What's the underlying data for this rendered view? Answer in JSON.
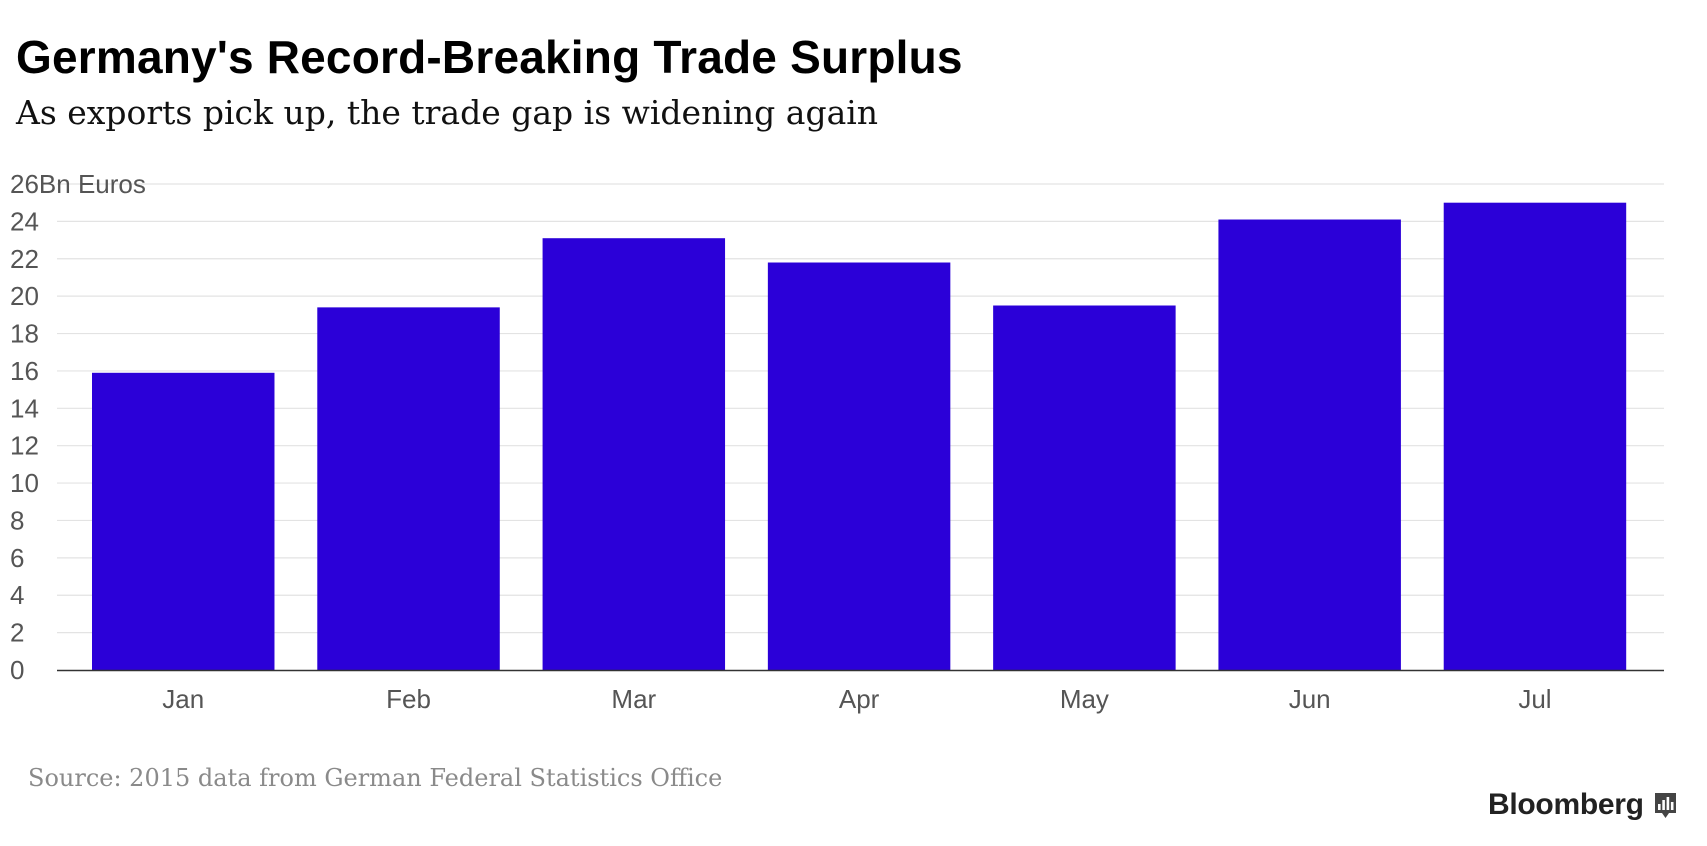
{
  "title": "Germany's Record-Breaking Trade Surplus",
  "subtitle": "As exports pick up, the trade gap is widening again",
  "source": "Source: 2015 data from German Federal Statistics Office",
  "brand": "Bloomberg",
  "colors": {
    "bar": "#2b00d8",
    "grid": "#e3e3e3",
    "axis": "#333333",
    "tick_text": "#555555",
    "brand_icon": "#444444"
  },
  "icons": {
    "brand_logo": "bloomberg-terminal-icon"
  },
  "chart_data": {
    "type": "bar",
    "title": "Germany's Record-Breaking Trade Surplus",
    "subtitle": "As exports pick up, the trade gap is widening again",
    "categories": [
      "Jan",
      "Feb",
      "Mar",
      "Apr",
      "May",
      "Jun",
      "Jul"
    ],
    "values": [
      15.9,
      19.4,
      23.1,
      21.8,
      19.5,
      24.1,
      25.0
    ],
    "yticks": [
      0,
      2,
      4,
      6,
      8,
      10,
      12,
      14,
      16,
      18,
      20,
      22,
      24,
      26
    ],
    "top_tick_label": "26Bn Euros",
    "ylim": [
      0,
      26
    ],
    "xlabel": "",
    "ylabel": "Bn Euros",
    "grid": true,
    "legend": "none"
  }
}
